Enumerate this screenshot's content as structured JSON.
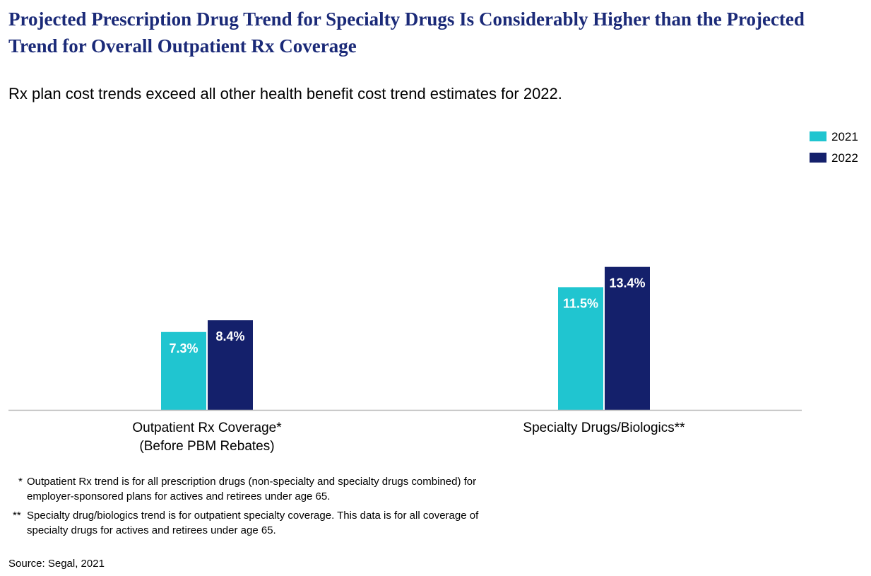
{
  "header": {
    "title": "Projected Prescription Drug Trend for Specialty Drugs Is Considerably Higher than the Projected Trend for Overall Outpatient Rx Coverage",
    "subtitle": "Rx plan cost trends exceed all other health benefit cost trend estimates for 2022."
  },
  "chart_data": {
    "type": "bar",
    "categories": [
      [
        "Outpatient Rx Coverage*",
        "(Before PBM Rebates)"
      ],
      [
        "Specialty Drugs/Biologics**"
      ]
    ],
    "series": [
      {
        "name": "2021",
        "color": "#20c5d0",
        "values": [
          7.3,
          11.5
        ],
        "labels": [
          "7.3%",
          "11.5%"
        ]
      },
      {
        "name": "2022",
        "color": "#14206b",
        "values": [
          8.4,
          13.4
        ],
        "labels": [
          "8.4%",
          "13.4%"
        ]
      }
    ],
    "ylim": [
      0,
      14
    ],
    "grid": false,
    "legend_position": "top-right",
    "baseline_color": "#b9b9b9"
  },
  "footnotes": [
    {
      "marker": "*",
      "text": "Outpatient Rx trend is for all prescription drugs (non-specialty and specialty drugs combined) for employer-sponsored plans for actives and retirees under age 65."
    },
    {
      "marker": "**",
      "text": "Specialty drug/biologics trend is for outpatient specialty coverage. This data is for all coverage of specialty drugs for actives and retirees under age 65."
    }
  ],
  "source": "Source: Segal, 2021"
}
